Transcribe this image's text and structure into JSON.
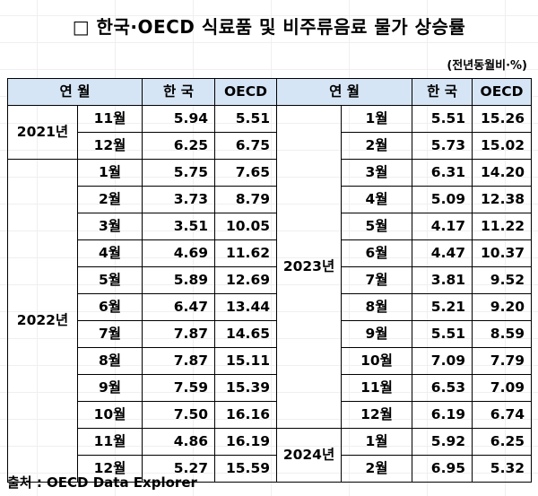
{
  "title": "□ 한국·OECD 식료품 및 비주류음료 물가 상승률",
  "unit": "(전년동월비·%)",
  "headers": {
    "period": "연 월",
    "korea": "한 국",
    "oecd": "OECD"
  },
  "years": {
    "y2021": "2021년",
    "y2022": "2022년",
    "y2023": "2023년",
    "y2024": "2024년"
  },
  "left": [
    {
      "month": "11월",
      "korea": "5.94",
      "oecd": "5.51"
    },
    {
      "month": "12월",
      "korea": "6.25",
      "oecd": "6.75"
    },
    {
      "month": "1월",
      "korea": "5.75",
      "oecd": "7.65"
    },
    {
      "month": "2월",
      "korea": "3.73",
      "oecd": "8.79"
    },
    {
      "month": "3월",
      "korea": "3.51",
      "oecd": "10.05"
    },
    {
      "month": "4월",
      "korea": "4.69",
      "oecd": "11.62"
    },
    {
      "month": "5월",
      "korea": "5.89",
      "oecd": "12.69"
    },
    {
      "month": "6월",
      "korea": "6.47",
      "oecd": "13.44"
    },
    {
      "month": "7월",
      "korea": "7.87",
      "oecd": "14.65"
    },
    {
      "month": "8월",
      "korea": "7.87",
      "oecd": "15.11"
    },
    {
      "month": "9월",
      "korea": "7.59",
      "oecd": "15.39"
    },
    {
      "month": "10월",
      "korea": "7.50",
      "oecd": "16.16"
    },
    {
      "month": "11월",
      "korea": "4.86",
      "oecd": "16.19"
    },
    {
      "month": "12월",
      "korea": "5.27",
      "oecd": "15.59"
    }
  ],
  "right": [
    {
      "month": "1월",
      "korea": "5.51",
      "oecd": "15.26"
    },
    {
      "month": "2월",
      "korea": "5.73",
      "oecd": "15.02"
    },
    {
      "month": "3월",
      "korea": "6.31",
      "oecd": "14.20"
    },
    {
      "month": "4월",
      "korea": "5.09",
      "oecd": "12.38"
    },
    {
      "month": "5월",
      "korea": "4.17",
      "oecd": "11.22"
    },
    {
      "month": "6월",
      "korea": "4.47",
      "oecd": "10.37"
    },
    {
      "month": "7월",
      "korea": "3.81",
      "oecd": "9.52"
    },
    {
      "month": "8월",
      "korea": "5.21",
      "oecd": "9.20"
    },
    {
      "month": "9월",
      "korea": "5.51",
      "oecd": "8.59"
    },
    {
      "month": "10월",
      "korea": "7.09",
      "oecd": "7.79"
    },
    {
      "month": "11월",
      "korea": "6.53",
      "oecd": "7.09"
    },
    {
      "month": "12월",
      "korea": "6.19",
      "oecd": "6.74"
    },
    {
      "month": "1월",
      "korea": "5.92",
      "oecd": "6.25"
    },
    {
      "month": "2월",
      "korea": "6.95",
      "oecd": "5.32"
    }
  ],
  "source": "출처 : OECD Data Explorer",
  "colors": {
    "header_bg": "#d6e5f5"
  }
}
